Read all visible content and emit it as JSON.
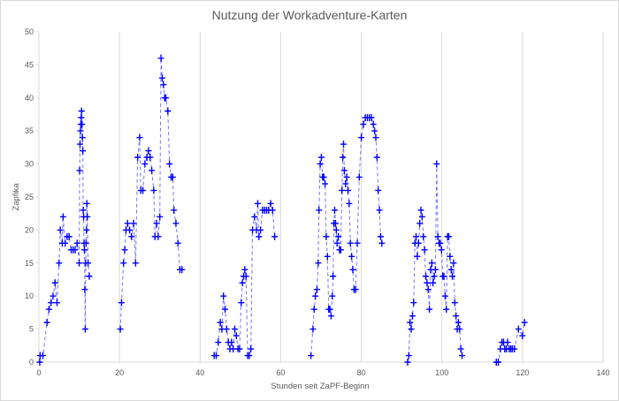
{
  "chart_data": {
    "type": "scatter",
    "title": "Nutzung der Workadventure-Karten",
    "xlabel": "Stunden seit ZaPF-Beginn",
    "ylabel": "Zapfika",
    "xlim": [
      0,
      140
    ],
    "ylim": [
      0,
      50
    ],
    "xticks": [
      0,
      20,
      40,
      60,
      80,
      100,
      120,
      140
    ],
    "yticks": [
      0,
      5,
      10,
      15,
      20,
      25,
      30,
      35,
      40,
      45,
      50
    ],
    "grid": "vertical",
    "legend": "none",
    "marker": "plus",
    "line": "dashed",
    "color": "#0000ff",
    "segments": [
      [
        [
          0.2,
          0
        ],
        [
          0.3,
          1
        ],
        [
          1.0,
          1
        ],
        [
          2.0,
          6
        ],
        [
          2.5,
          8
        ],
        [
          3.0,
          9
        ],
        [
          3.5,
          10
        ],
        [
          4.0,
          12
        ],
        [
          4.5,
          9
        ],
        [
          5.0,
          15
        ],
        [
          5.3,
          20
        ],
        [
          5.8,
          18
        ],
        [
          6.0,
          22
        ],
        [
          6.5,
          18
        ],
        [
          7.0,
          19
        ],
        [
          7.5,
          19
        ],
        [
          8.0,
          17
        ],
        [
          8.5,
          17
        ],
        [
          9.0,
          17
        ],
        [
          9.5,
          18
        ],
        [
          10.0,
          15
        ],
        [
          10.1,
          29
        ],
        [
          10.2,
          33
        ],
        [
          10.3,
          35
        ],
        [
          10.4,
          36
        ],
        [
          10.5,
          37
        ],
        [
          10.6,
          38
        ],
        [
          10.7,
          36
        ],
        [
          10.8,
          34
        ],
        [
          10.9,
          32
        ],
        [
          11.0,
          23
        ],
        [
          11.1,
          22
        ],
        [
          11.2,
          18
        ],
        [
          11.3,
          17
        ],
        [
          11.4,
          11
        ],
        [
          11.5,
          5
        ],
        [
          11.6,
          15
        ],
        [
          11.7,
          18
        ],
        [
          11.8,
          20
        ],
        [
          11.9,
          24
        ],
        [
          12.0,
          22
        ],
        [
          12.2,
          15
        ],
        [
          12.5,
          13
        ]
      ],
      [
        [
          20.2,
          5
        ],
        [
          20.5,
          9
        ],
        [
          21.0,
          15
        ],
        [
          21.3,
          17
        ],
        [
          21.6,
          20
        ],
        [
          22.0,
          21
        ],
        [
          22.5,
          20
        ],
        [
          23.0,
          19
        ],
        [
          23.5,
          21
        ],
        [
          24.0,
          15
        ],
        [
          24.5,
          31
        ],
        [
          25.0,
          34
        ],
        [
          25.3,
          26
        ],
        [
          25.8,
          26
        ],
        [
          26.3,
          30
        ],
        [
          26.8,
          31
        ],
        [
          27.2,
          32
        ],
        [
          27.6,
          31
        ],
        [
          28.0,
          29
        ],
        [
          28.5,
          26
        ],
        [
          28.8,
          19
        ],
        [
          29.2,
          21
        ],
        [
          29.6,
          19
        ],
        [
          30.0,
          22
        ],
        [
          30.3,
          46
        ],
        [
          30.6,
          43
        ],
        [
          30.9,
          42
        ],
        [
          31.2,
          40
        ],
        [
          31.5,
          40
        ],
        [
          32.0,
          38
        ],
        [
          32.4,
          30
        ],
        [
          32.8,
          28
        ],
        [
          33.2,
          28
        ],
        [
          33.5,
          23
        ],
        [
          34.0,
          21
        ],
        [
          34.5,
          18
        ],
        [
          35.0,
          14
        ],
        [
          35.5,
          14
        ]
      ],
      [
        [
          43.5,
          1
        ],
        [
          44.0,
          1
        ],
        [
          44.5,
          3
        ],
        [
          45.0,
          6
        ],
        [
          45.4,
          5
        ],
        [
          45.8,
          10
        ],
        [
          46.2,
          8
        ],
        [
          46.6,
          5
        ],
        [
          47.0,
          3
        ],
        [
          47.4,
          2
        ],
        [
          47.8,
          3
        ],
        [
          48.2,
          2
        ],
        [
          48.6,
          5
        ],
        [
          49.0,
          4
        ],
        [
          49.4,
          2
        ],
        [
          49.8,
          2
        ],
        [
          50.2,
          9
        ],
        [
          50.5,
          12
        ],
        [
          50.8,
          13
        ],
        [
          51.1,
          14
        ],
        [
          51.4,
          13
        ],
        [
          51.8,
          1
        ],
        [
          52.2,
          1
        ],
        [
          52.6,
          2
        ],
        [
          53.0,
          20
        ],
        [
          53.5,
          22
        ],
        [
          54.0,
          20
        ],
        [
          54.3,
          24
        ],
        [
          54.6,
          19
        ],
        [
          55.0,
          20
        ],
        [
          55.5,
          23
        ],
        [
          56.0,
          23
        ],
        [
          56.5,
          23
        ],
        [
          57.0,
          23
        ],
        [
          57.5,
          24
        ],
        [
          58.0,
          23
        ],
        [
          58.5,
          19
        ]
      ],
      [
        [
          67.5,
          1
        ],
        [
          68.0,
          5
        ],
        [
          68.3,
          8
        ],
        [
          68.6,
          10
        ],
        [
          69.0,
          11
        ],
        [
          69.3,
          15
        ],
        [
          69.5,
          23
        ],
        [
          69.8,
          30
        ],
        [
          70.1,
          31
        ],
        [
          70.4,
          28
        ],
        [
          70.7,
          28
        ],
        [
          71.0,
          27
        ],
        [
          71.3,
          19
        ],
        [
          71.6,
          16
        ],
        [
          71.9,
          8
        ],
        [
          72.2,
          8
        ],
        [
          72.5,
          7
        ],
        [
          72.8,
          10
        ],
        [
          73.0,
          13
        ],
        [
          73.2,
          21
        ],
        [
          73.4,
          23
        ],
        [
          73.6,
          21
        ],
        [
          73.8,
          20
        ],
        [
          74.0,
          18
        ],
        [
          74.3,
          19
        ],
        [
          74.6,
          17
        ],
        [
          74.9,
          17
        ],
        [
          75.2,
          26
        ],
        [
          75.4,
          31
        ],
        [
          75.6,
          33
        ],
        [
          75.8,
          29
        ],
        [
          76.1,
          27
        ],
        [
          76.4,
          28
        ],
        [
          76.7,
          26
        ],
        [
          77.0,
          24
        ],
        [
          77.3,
          18
        ],
        [
          77.6,
          16
        ],
        [
          77.9,
          14
        ],
        [
          78.2,
          11
        ],
        [
          78.6,
          11
        ],
        [
          79.0,
          18
        ],
        [
          79.5,
          28
        ],
        [
          80.0,
          34
        ],
        [
          80.5,
          36
        ],
        [
          81.0,
          37
        ],
        [
          81.5,
          37
        ],
        [
          82.0,
          37
        ],
        [
          82.5,
          37
        ],
        [
          83.0,
          36
        ],
        [
          83.3,
          35
        ],
        [
          83.6,
          34
        ],
        [
          83.9,
          31
        ],
        [
          84.2,
          26
        ],
        [
          84.5,
          23
        ],
        [
          84.8,
          19
        ],
        [
          85.1,
          18
        ]
      ],
      [
        [
          91.5,
          0
        ],
        [
          91.8,
          1
        ],
        [
          92.1,
          6
        ],
        [
          92.4,
          5
        ],
        [
          92.7,
          7
        ],
        [
          93.0,
          9
        ],
        [
          93.3,
          18
        ],
        [
          93.6,
          19
        ],
        [
          93.9,
          16
        ],
        [
          94.2,
          18
        ],
        [
          94.5,
          21
        ],
        [
          94.8,
          23
        ],
        [
          95.1,
          22
        ],
        [
          95.4,
          19
        ],
        [
          95.7,
          17
        ],
        [
          96.0,
          13
        ],
        [
          96.3,
          12
        ],
        [
          96.6,
          11
        ],
        [
          96.9,
          8
        ],
        [
          97.2,
          14
        ],
        [
          97.5,
          15
        ],
        [
          97.8,
          12
        ],
        [
          98.1,
          13
        ],
        [
          98.4,
          14
        ],
        [
          98.7,
          30
        ],
        [
          99.0,
          19
        ],
        [
          99.3,
          18
        ],
        [
          99.6,
          18
        ],
        [
          99.9,
          17
        ],
        [
          100.2,
          13
        ],
        [
          100.5,
          13
        ],
        [
          100.8,
          10
        ],
        [
          101.1,
          8
        ],
        [
          101.4,
          19
        ],
        [
          101.7,
          19
        ],
        [
          102.0,
          16
        ],
        [
          102.3,
          14
        ],
        [
          102.6,
          13
        ],
        [
          102.9,
          15
        ],
        [
          103.2,
          9
        ],
        [
          103.5,
          7
        ],
        [
          103.8,
          5
        ],
        [
          104.1,
          6
        ],
        [
          104.4,
          5
        ],
        [
          104.7,
          2
        ],
        [
          105.0,
          1
        ]
      ],
      [
        [
          113.5,
          0
        ],
        [
          114.0,
          0
        ],
        [
          114.5,
          2
        ],
        [
          114.9,
          3
        ],
        [
          115.3,
          3
        ],
        [
          115.6,
          2
        ],
        [
          116.0,
          2
        ],
        [
          116.3,
          3
        ],
        [
          116.7,
          2
        ],
        [
          117.1,
          2
        ],
        [
          117.5,
          2
        ],
        [
          118.0,
          2
        ],
        [
          119.0,
          5
        ],
        [
          120.0,
          4
        ],
        [
          120.5,
          6
        ]
      ]
    ]
  }
}
